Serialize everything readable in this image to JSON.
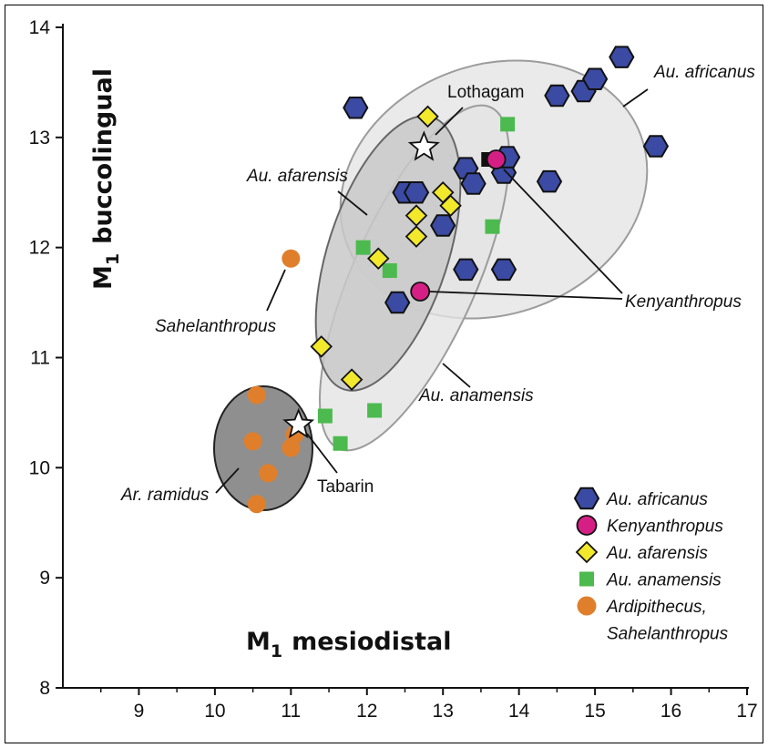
{
  "chart_data": {
    "type": "scatter",
    "title": "",
    "xlabel": "M",
    "xlabel_sub": "1",
    "xlabel_rest": "mesiodistal",
    "ylabel": "M",
    "ylabel_sub": "1",
    "ylabel_rest": "buccolingual",
    "xlim": [
      8,
      17
    ],
    "ylim": [
      8,
      14
    ],
    "xticks": [
      9,
      10,
      11,
      12,
      13,
      14,
      15,
      16,
      17
    ],
    "yticks": [
      8,
      9,
      10,
      11,
      12,
      13,
      14
    ],
    "grid": false,
    "legend_position": "bottom-right",
    "series": [
      {
        "name": "Au. africanus",
        "marker": "hexagon",
        "color": "#3b4aa3",
        "points": [
          [
            12.4,
            11.5
          ],
          [
            12.5,
            12.5
          ],
          [
            12.65,
            12.5
          ],
          [
            13.0,
            12.2
          ],
          [
            13.3,
            11.8
          ],
          [
            13.3,
            12.72
          ],
          [
            13.4,
            12.58
          ],
          [
            13.8,
            11.8
          ],
          [
            13.8,
            12.68
          ],
          [
            13.85,
            12.82
          ],
          [
            14.4,
            12.6
          ],
          [
            14.5,
            13.38
          ],
          [
            14.85,
            13.42
          ],
          [
            15.0,
            13.53
          ],
          [
            15.35,
            13.73
          ],
          [
            15.8,
            12.92
          ],
          [
            11.85,
            13.27
          ]
        ]
      },
      {
        "name": "Kenyanthropus",
        "marker": "circle",
        "color": "#d61f85",
        "points": [
          [
            12.7,
            11.6
          ],
          [
            13.7,
            12.8
          ]
        ]
      },
      {
        "name": "Au. afarensis",
        "marker": "diamond",
        "color": "#f2e82c",
        "points": [
          [
            11.4,
            11.1
          ],
          [
            11.8,
            10.8
          ],
          [
            12.15,
            11.9
          ],
          [
            12.65,
            12.1
          ],
          [
            12.65,
            12.29
          ],
          [
            12.8,
            13.19
          ],
          [
            13.0,
            12.5
          ],
          [
            13.1,
            12.38
          ]
        ]
      },
      {
        "name": "Au. anamensis",
        "marker": "square",
        "color": "#4cba4e",
        "points": [
          [
            11.45,
            10.47
          ],
          [
            11.65,
            10.22
          ],
          [
            11.95,
            12.0
          ],
          [
            12.1,
            10.52
          ],
          [
            12.3,
            11.79
          ],
          [
            13.65,
            12.19
          ],
          [
            13.85,
            13.12
          ]
        ]
      },
      {
        "name": "Ardipithecus, Sahelanthropus",
        "marker": "circle",
        "color": "#e07f2b",
        "points": [
          [
            10.5,
            10.24
          ],
          [
            10.55,
            9.67
          ],
          [
            10.55,
            10.66
          ],
          [
            10.7,
            9.95
          ],
          [
            11.0,
            10.18
          ],
          [
            11.05,
            10.3
          ],
          [
            11.0,
            11.9
          ]
        ]
      }
    ],
    "special_points": [
      {
        "label": "Lothagam",
        "marker": "star",
        "x": 12.75,
        "y": 12.91
      },
      {
        "label": "Tabarin",
        "marker": "star",
        "x": 11.1,
        "y": 10.39
      }
    ],
    "annotations": {
      "africanus": "Au. africanus",
      "afarensis": "Au. afarensis",
      "sahelanthropus": "Sahelanthropus",
      "kenyanthropus": "Kenyanthropus",
      "anamensis": "Au. anamensis",
      "ramidus": "Ar. ramidus",
      "lothagam": "Lothagam",
      "tabarin": "Tabarin"
    },
    "legend": [
      {
        "label": "Au. africanus",
        "marker": "hexagon",
        "color": "#3b4aa3"
      },
      {
        "label": "Kenyanthropus",
        "marker": "circle",
        "color": "#d61f85"
      },
      {
        "label": "Au. afarensis",
        "marker": "diamond",
        "color": "#f2e82c"
      },
      {
        "label": "Au. anamensis",
        "marker": "square",
        "color": "#4cba4e"
      },
      {
        "label": "Ardipithecus,",
        "label2": "Sahelanthropus",
        "marker": "circle",
        "color": "#e07f2b"
      }
    ]
  }
}
